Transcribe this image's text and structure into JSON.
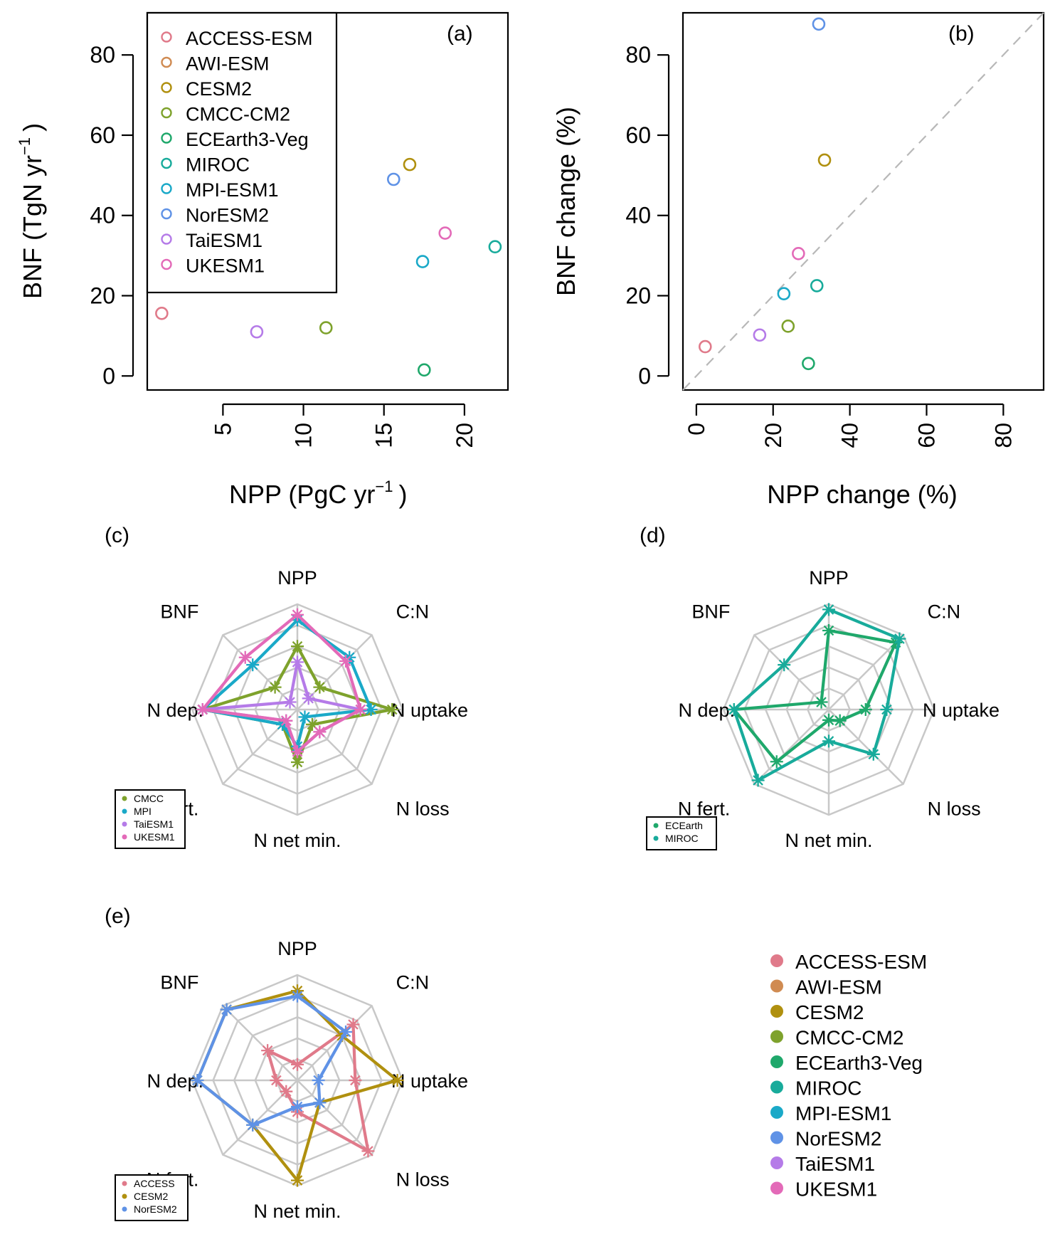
{
  "colors": {
    "ACCESS-ESM": "#e07a8a",
    "AWI-ESM": "#d08b52",
    "CESM2": "#b0900f",
    "CMCC-CM2": "#7ea22c",
    "ECEarth3-Veg": "#1fa86b",
    "MIROC": "#18ab9b",
    "MPI-ESM1": "#1aa9c8",
    "NorESM2": "#5f92e6",
    "TaiESM1": "#b57be8",
    "UKESM1": "#e36ab8"
  },
  "legend": {
    "models": [
      "ACCESS-ESM",
      "AWI-ESM",
      "CESM2",
      "CMCC-CM2",
      "ECEarth3-Veg",
      "MIROC",
      "MPI-ESM1",
      "NorESM2",
      "TaiESM1",
      "UKESM1"
    ]
  },
  "chart_data": [
    {
      "id": "a",
      "type": "scatter",
      "panel_label": "(a)",
      "xlabel": "NPP (PgC  yr",
      "xlabel_sup": "−1",
      "xlabel_close": ")",
      "ylabel": "BNF (TgN  yr",
      "ylabel_sup": "−1",
      "ylabel_close": ")",
      "xlim": [
        0.3,
        22.7
      ],
      "ylim": [
        -3.5,
        90.5
      ],
      "xticks": [
        5,
        10,
        15,
        20
      ],
      "xtick_labels": [
        "5",
        "10",
        "15",
        "20"
      ],
      "yticks": [
        0,
        20,
        40,
        60,
        80
      ],
      "ytick_labels": [
        "0",
        "20",
        "40",
        "60",
        "80"
      ],
      "legend_position": "top-left",
      "points": [
        {
          "model": "ACCESS-ESM",
          "x": 1.2,
          "y": 15.6
        },
        {
          "model": "CESM2",
          "x": 16.6,
          "y": 52.7
        },
        {
          "model": "CMCC-CM2",
          "x": 11.4,
          "y": 12.0
        },
        {
          "model": "ECEarth3-Veg",
          "x": 17.5,
          "y": 1.5
        },
        {
          "model": "MIROC",
          "x": 21.9,
          "y": 32.2
        },
        {
          "model": "MPI-ESM1",
          "x": 17.4,
          "y": 28.5
        },
        {
          "model": "NorESM2",
          "x": 15.6,
          "y": 49.0
        },
        {
          "model": "TaiESM1",
          "x": 7.1,
          "y": 11.0
        },
        {
          "model": "UKESM1",
          "x": 18.8,
          "y": 35.6
        }
      ]
    },
    {
      "id": "b",
      "type": "scatter",
      "panel_label": "(b)",
      "xlabel": "NPP change (%)",
      "ylabel": "BNF change (%)",
      "xlim": [
        -3.5,
        90.5
      ],
      "ylim": [
        -3.5,
        90.5
      ],
      "xticks": [
        0,
        20,
        40,
        60,
        80
      ],
      "xtick_labels": [
        "0",
        "20",
        "40",
        "60",
        "80"
      ],
      "yticks": [
        0,
        20,
        40,
        60,
        80
      ],
      "ytick_labels": [
        "0",
        "20",
        "40",
        "60",
        "80"
      ],
      "reference_line": "1:1 dashed",
      "points": [
        {
          "model": "ACCESS-ESM",
          "x": 2.3,
          "y": 7.3
        },
        {
          "model": "CESM2",
          "x": 33.4,
          "y": 53.8
        },
        {
          "model": "CMCC-CM2",
          "x": 23.9,
          "y": 12.4
        },
        {
          "model": "ECEarth3-Veg",
          "x": 29.2,
          "y": 3.1
        },
        {
          "model": "MIROC",
          "x": 31.4,
          "y": 22.5
        },
        {
          "model": "MPI-ESM1",
          "x": 22.8,
          "y": 20.5
        },
        {
          "model": "NorESM2",
          "x": 31.9,
          "y": 87.7
        },
        {
          "model": "TaiESM1",
          "x": 16.5,
          "y": 10.2
        },
        {
          "model": "UKESM1",
          "x": 26.6,
          "y": 30.5
        }
      ]
    },
    {
      "id": "c",
      "type": "radar",
      "panel_label": "(c)",
      "axes": [
        "NPP",
        "C:N",
        "N uptake",
        "N loss",
        "N net min.",
        "N fert.",
        "N dep.",
        "BNF"
      ],
      "rings": 5,
      "legend_position": "bottom-left",
      "series": [
        {
          "name": "CMCC",
          "model": "CMCC-CM2",
          "values": [
            0.6,
            0.3,
            0.9,
            0.2,
            0.5,
            0.2,
            0.9,
            0.3
          ]
        },
        {
          "name": "MPI",
          "model": "MPI-ESM1",
          "values": [
            0.85,
            0.7,
            0.7,
            0.1,
            0.35,
            0.2,
            0.9,
            0.6
          ]
        },
        {
          "name": "TaiESM1",
          "model": "TaiESM1",
          "values": [
            0.45,
            0.15,
            0.6,
            0.3,
            0.4,
            0.15,
            0.9,
            0.1
          ]
        },
        {
          "name": "UKESM1",
          "model": "UKESM1",
          "values": [
            0.9,
            0.65,
            0.6,
            0.3,
            0.4,
            0.15,
            0.9,
            0.7
          ]
        }
      ]
    },
    {
      "id": "d",
      "type": "radar",
      "panel_label": "(d)",
      "axes": [
        "NPP",
        "C:N",
        "N uptake",
        "N loss",
        "N net min.",
        "N fert.",
        "N dep.",
        "BNF"
      ],
      "rings": 5,
      "legend_position": "bottom-left",
      "series": [
        {
          "name": "ECEarth",
          "model": "ECEarth3-Veg",
          "values": [
            0.75,
            0.9,
            0.35,
            0.15,
            0.1,
            0.7,
            0.9,
            0.1
          ]
        },
        {
          "name": "MIROC",
          "model": "MIROC",
          "values": [
            0.95,
            0.95,
            0.55,
            0.6,
            0.3,
            0.95,
            0.9,
            0.6
          ]
        }
      ]
    },
    {
      "id": "e",
      "type": "radar",
      "panel_label": "(e)",
      "axes": [
        "NPP",
        "C:N",
        "N uptake",
        "N loss",
        "N net min.",
        "N fert.",
        "N dep.",
        "BNF"
      ],
      "rings": 5,
      "legend_position": "bottom-left",
      "series": [
        {
          "name": "ACCESS",
          "model": "ACCESS-ESM",
          "values": [
            0.15,
            0.75,
            0.55,
            0.95,
            0.3,
            0.15,
            0.2,
            0.4
          ]
        },
        {
          "name": "CESM2",
          "model": "CESM2",
          "values": [
            0.85,
            0.6,
            0.95,
            0.3,
            0.95,
            0.6,
            0.95,
            0.95
          ]
        },
        {
          "name": "NorESM2",
          "model": "NorESM2",
          "values": [
            0.8,
            0.65,
            0.2,
            0.3,
            0.25,
            0.6,
            0.95,
            0.95
          ]
        }
      ]
    }
  ]
}
